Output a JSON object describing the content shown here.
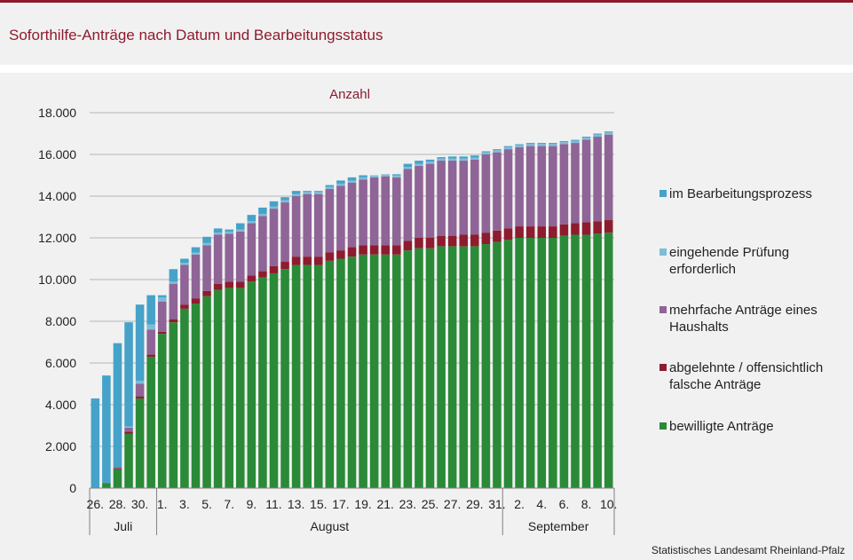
{
  "title": "Soforthilfe-Anträge nach Datum und Bearbeitungsstatus",
  "source": "Statistisches Landesamt Rheinland-Pfalz",
  "colors": {
    "title": "#8e1b2e",
    "bewilligt": "#2a8a37",
    "abgelehnt": "#8e1b2e",
    "mehrfach": "#8f6496",
    "pruefung": "#7fbcd8",
    "bearbeitung": "#46a2c8",
    "panel": "#f1f1f1"
  },
  "legend": [
    {
      "label": "im Bearbeitungsprozess",
      "color_key": "bearbeitung"
    },
    {
      "label": "eingehende Prüfung erforderlich",
      "color_key": "pruefung"
    },
    {
      "label": "mehrfache Anträge eines Haushalts",
      "color_key": "mehrfach"
    },
    {
      "label": "abgelehnte / offensichtlich falsche Anträge",
      "color_key": "abgelehnt"
    },
    {
      "label": "bewilligte Anträge",
      "color_key": "bewilligt"
    }
  ],
  "chart_data": {
    "type": "bar",
    "stacked": true,
    "ylabel": "Anzahl",
    "ylim": [
      0,
      18000
    ],
    "yticks": [
      0,
      2000,
      4000,
      6000,
      8000,
      10000,
      12000,
      14000,
      16000,
      18000
    ],
    "ytick_labels": [
      "0",
      "2.000",
      "4.000",
      "6.000",
      "8.000",
      "10.000",
      "12.000",
      "14.000",
      "16.000",
      "18.000"
    ],
    "grid": true,
    "legend_position": "right",
    "categories": [
      "26.",
      "27.",
      "28.",
      "29.",
      "30.",
      "31.",
      "1.",
      "2.",
      "3.",
      "4.",
      "5.",
      "6.",
      "7.",
      "8.",
      "9.",
      "10.",
      "11.",
      "12.",
      "13.",
      "14.",
      "15.",
      "16.",
      "17.",
      "18.",
      "19.",
      "20.",
      "21.",
      "22.",
      "23.",
      "24.",
      "25.",
      "26.",
      "27.",
      "28.",
      "29.",
      "30.",
      "31.",
      "1.",
      "2.",
      "3.",
      "4.",
      "5.",
      "6.",
      "7.",
      "8.",
      "9.",
      "10."
    ],
    "shown_tick_labels": [
      "26.",
      "28.",
      "30.",
      "1.",
      "3.",
      "5.",
      "7.",
      "9.",
      "11.",
      "13.",
      "15.",
      "17.",
      "19.",
      "21.",
      "23.",
      "25.",
      "27.",
      "29.",
      "31.",
      "2.",
      "4.",
      "6.",
      "8.",
      "10."
    ],
    "shown_tick_indices": [
      0,
      2,
      4,
      6,
      8,
      10,
      12,
      14,
      16,
      18,
      20,
      22,
      24,
      26,
      28,
      30,
      32,
      34,
      36,
      38,
      40,
      42,
      44,
      46
    ],
    "month_groups": [
      {
        "label": "Juli",
        "start": 0,
        "end": 5
      },
      {
        "label": "August",
        "start": 6,
        "end": 36
      },
      {
        "label": "September",
        "start": 37,
        "end": 46
      }
    ],
    "series": [
      {
        "name": "bewilligte Anträge",
        "color_key": "bewilligt",
        "values": [
          0,
          250,
          900,
          2600,
          4300,
          6300,
          7400,
          7950,
          8600,
          8850,
          9200,
          9500,
          9600,
          9600,
          9900,
          10100,
          10300,
          10500,
          10700,
          10700,
          10700,
          10900,
          11000,
          11100,
          11200,
          11200,
          11200,
          11200,
          11400,
          11500,
          11500,
          11600,
          11600,
          11600,
          11600,
          11700,
          11800,
          11900,
          12000,
          12000,
          12000,
          12000,
          12100,
          12150,
          12150,
          12200,
          12250
        ]
      },
      {
        "name": "abgelehnte / offensichtlich falsche Anträge",
        "color_key": "abgelehnt",
        "values": [
          0,
          0,
          50,
          100,
          100,
          100,
          100,
          150,
          200,
          250,
          250,
          300,
          300,
          300,
          300,
          300,
          350,
          350,
          400,
          400,
          400,
          400,
          400,
          450,
          450,
          450,
          450,
          450,
          450,
          500,
          500,
          500,
          500,
          550,
          550,
          550,
          550,
          550,
          550,
          550,
          550,
          550,
          550,
          550,
          600,
          600,
          600
        ]
      },
      {
        "name": "mehrfache Anträge eines Haushalts",
        "color_key": "mehrfach",
        "values": [
          0,
          0,
          50,
          200,
          600,
          1200,
          1450,
          1700,
          1900,
          2100,
          2200,
          2350,
          2300,
          2400,
          2500,
          2650,
          2750,
          2850,
          2900,
          3000,
          3000,
          3050,
          3100,
          3100,
          3150,
          3250,
          3300,
          3250,
          3450,
          3450,
          3550,
          3600,
          3600,
          3550,
          3600,
          3750,
          3750,
          3800,
          3800,
          3850,
          3850,
          3850,
          3850,
          3850,
          3950,
          4050,
          4100
        ]
      },
      {
        "name": "eingehende Prüfung erforderlich",
        "color_key": "pruefung",
        "values": [
          0,
          0,
          0,
          50,
          150,
          250,
          200,
          100,
          100,
          100,
          100,
          100,
          100,
          100,
          100,
          100,
          100,
          100,
          100,
          100,
          100,
          100,
          100,
          100,
          100,
          100,
          100,
          100,
          100,
          100,
          100,
          100,
          100,
          100,
          100,
          100,
          100,
          100,
          100,
          100,
          100,
          100,
          100,
          100,
          100,
          100,
          100
        ]
      },
      {
        "name": "im Bearbeitungsprozess",
        "color_key": "bearbeitung",
        "values": [
          4300,
          5150,
          5950,
          5000,
          3650,
          1400,
          100,
          600,
          200,
          250,
          300,
          200,
          100,
          300,
          300,
          300,
          250,
          150,
          150,
          50,
          50,
          80,
          150,
          150,
          100,
          0,
          0,
          50,
          150,
          150,
          100,
          70,
          100,
          100,
          100,
          50,
          50,
          50,
          40,
          50,
          50,
          50,
          40,
          50,
          50,
          50,
          50
        ]
      }
    ]
  }
}
